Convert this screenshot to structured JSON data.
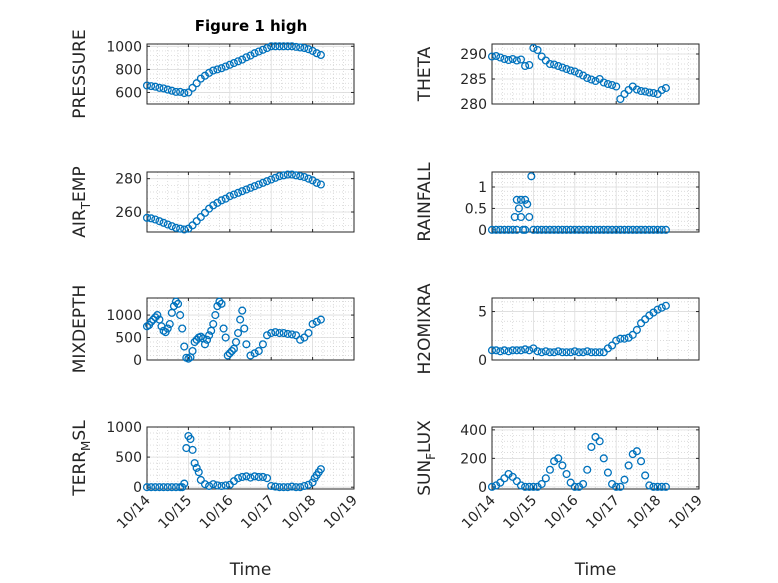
{
  "figure": {
    "title": "Figure 1 high",
    "marker_color": "#0072BD"
  },
  "chart_data": [
    {
      "type": "scatter",
      "title": "Figure 1 high",
      "ylabel": "PRESSURE",
      "ylim": [
        500,
        1020
      ],
      "yticks": [
        600,
        800,
        1000
      ],
      "xticks": [],
      "series": [
        {
          "x": [
            14.0,
            14.1,
            14.2,
            14.3,
            14.4,
            14.5,
            14.6,
            14.7,
            14.8,
            14.9,
            15.0,
            15.1,
            15.2,
            15.3,
            15.4,
            15.5,
            15.6,
            15.7,
            15.8,
            15.9,
            16.0,
            16.1,
            16.2,
            16.3,
            16.4,
            16.5,
            16.6,
            16.7,
            16.8,
            16.9,
            17.0,
            17.1,
            17.2,
            17.3,
            17.4,
            17.5,
            17.6,
            17.7,
            17.8,
            17.9,
            18.0,
            18.1,
            18.2
          ],
          "y": [
            660,
            655,
            650,
            640,
            635,
            625,
            615,
            605,
            605,
            595,
            600,
            640,
            680,
            720,
            745,
            770,
            790,
            800,
            810,
            825,
            840,
            855,
            870,
            885,
            905,
            920,
            940,
            955,
            970,
            985,
            1000,
            1000,
            1000,
            1000,
            1000,
            1000,
            995,
            990,
            985,
            975,
            960,
            940,
            925
          ]
        }
      ]
    },
    {
      "type": "scatter",
      "ylabel": "THETA",
      "ylim": [
        280,
        292
      ],
      "yticks": [
        280,
        285,
        290
      ],
      "xticks": [],
      "series": [
        {
          "x": [
            14.0,
            14.1,
            14.2,
            14.3,
            14.4,
            14.5,
            14.6,
            14.7,
            14.8,
            14.9,
            15.0,
            15.1,
            15.2,
            15.3,
            15.4,
            15.5,
            15.6,
            15.7,
            15.8,
            15.9,
            16.0,
            16.1,
            16.2,
            16.3,
            16.4,
            16.5,
            16.6,
            16.7,
            16.8,
            16.9,
            17.0,
            17.1,
            17.2,
            17.3,
            17.4,
            17.5,
            17.6,
            17.7,
            17.8,
            17.9,
            18.0,
            18.1,
            18.2
          ],
          "y": [
            289.5,
            289.6,
            289.3,
            289.0,
            288.8,
            289.0,
            288.7,
            288.9,
            287.6,
            287.8,
            291.2,
            290.8,
            289.5,
            288.7,
            288.0,
            287.9,
            287.6,
            287.3,
            287.0,
            286.7,
            286.5,
            286.1,
            285.7,
            285.2,
            284.9,
            284.6,
            285.0,
            284.3,
            284.0,
            283.8,
            283.5,
            281.0,
            282.0,
            282.8,
            283.5,
            282.9,
            282.6,
            282.5,
            282.3,
            282.2,
            282.0,
            282.8,
            283.2
          ]
        }
      ]
    },
    {
      "type": "scatter",
      "ylabel": "AIR_TEMP",
      "ylim": [
        248,
        284
      ],
      "yticks": [
        260,
        280
      ],
      "xticks": [],
      "series": [
        {
          "x": [
            14.0,
            14.1,
            14.2,
            14.3,
            14.4,
            14.5,
            14.6,
            14.7,
            14.8,
            14.9,
            15.0,
            15.1,
            15.2,
            15.3,
            15.4,
            15.5,
            15.6,
            15.7,
            15.8,
            15.9,
            16.0,
            16.1,
            16.2,
            16.3,
            16.4,
            16.5,
            16.6,
            16.7,
            16.8,
            16.9,
            17.0,
            17.1,
            17.2,
            17.3,
            17.4,
            17.5,
            17.6,
            17.7,
            17.8,
            17.9,
            18.0,
            18.1,
            18.2
          ],
          "y": [
            256.5,
            256.2,
            255.5,
            254.5,
            253.5,
            252.5,
            251.5,
            250.5,
            250.0,
            249.5,
            250.0,
            252.0,
            254.5,
            257.0,
            259.5,
            262.0,
            264.0,
            265.5,
            267.0,
            268.0,
            269.5,
            270.5,
            271.5,
            272.5,
            273.5,
            274.5,
            275.5,
            276.5,
            277.5,
            278.5,
            279.5,
            280.5,
            281.5,
            282.0,
            282.5,
            282.5,
            282.0,
            281.5,
            281.0,
            280.0,
            279.0,
            277.5,
            276.5
          ]
        }
      ]
    },
    {
      "type": "scatter",
      "ylabel": "RAINFALL",
      "ylim": [
        -0.05,
        1.35
      ],
      "yticks": [
        0,
        0.5,
        1
      ],
      "xticks": [],
      "series": [
        {
          "x": [
            14.0,
            14.1,
            14.2,
            14.3,
            14.4,
            14.5,
            14.55,
            14.6,
            14.6,
            14.65,
            14.7,
            14.7,
            14.75,
            14.8,
            14.8,
            14.85,
            14.9,
            14.95,
            15.0,
            15.1,
            15.2,
            15.3,
            15.4,
            15.5,
            15.6,
            15.7,
            15.8,
            15.9,
            16.0,
            16.1,
            16.2,
            16.3,
            16.4,
            16.5,
            16.6,
            16.7,
            16.8,
            16.9,
            17.0,
            17.1,
            17.2,
            17.3,
            17.4,
            17.5,
            17.6,
            17.7,
            17.8,
            17.9,
            18.0,
            18.1,
            18.2
          ],
          "y": [
            0,
            0,
            0,
            0,
            0,
            0,
            0.3,
            0,
            0.7,
            0.5,
            0.7,
            0.3,
            0,
            0.7,
            0,
            0.6,
            0.3,
            1.25,
            0,
            0,
            0,
            0,
            0,
            0,
            0,
            0,
            0,
            0,
            0,
            0,
            0,
            0,
            0,
            0,
            0,
            0,
            0,
            0,
            0,
            0,
            0,
            0,
            0,
            0,
            0,
            0,
            0,
            0,
            0,
            0,
            0
          ]
        }
      ]
    },
    {
      "type": "scatter",
      "ylabel": "MIXDEPTH",
      "ylim": [
        0,
        1380
      ],
      "yticks": [
        0,
        500,
        1000
      ],
      "xticks": [],
      "series": [
        {
          "x": [
            14.0,
            14.05,
            14.1,
            14.15,
            14.2,
            14.25,
            14.3,
            14.35,
            14.4,
            14.45,
            14.5,
            14.55,
            14.6,
            14.65,
            14.7,
            14.75,
            14.8,
            14.85,
            14.9,
            14.95,
            15.0,
            15.05,
            15.1,
            15.15,
            15.2,
            15.25,
            15.3,
            15.35,
            15.4,
            15.45,
            15.5,
            15.55,
            15.6,
            15.65,
            15.7,
            15.75,
            15.8,
            15.85,
            15.9,
            15.95,
            16.0,
            16.05,
            16.1,
            16.15,
            16.2,
            16.25,
            16.3,
            16.35,
            16.4,
            16.5,
            16.6,
            16.7,
            16.8,
            16.9,
            17.0,
            17.1,
            17.2,
            17.3,
            17.4,
            17.5,
            17.6,
            17.7,
            17.8,
            17.9,
            18.0,
            18.1,
            18.2
          ],
          "y": [
            750,
            780,
            850,
            900,
            950,
            1000,
            900,
            750,
            650,
            620,
            700,
            800,
            1050,
            1200,
            1300,
            1250,
            1000,
            700,
            300,
            50,
            30,
            60,
            200,
            400,
            450,
            500,
            520,
            480,
            350,
            450,
            550,
            650,
            800,
            1000,
            1200,
            1300,
            1250,
            700,
            500,
            100,
            150,
            200,
            250,
            400,
            600,
            900,
            1100,
            700,
            350,
            100,
            150,
            200,
            350,
            550,
            600,
            620,
            600,
            600,
            580,
            570,
            550,
            450,
            500,
            600,
            800,
            850,
            900
          ]
        }
      ]
    },
    {
      "type": "scatter",
      "ylabel": "H2OMIXRA",
      "ylim": [
        0,
        6.4
      ],
      "yticks": [
        0,
        5
      ],
      "xticks": [],
      "series": [
        {
          "x": [
            14.0,
            14.1,
            14.2,
            14.3,
            14.4,
            14.5,
            14.6,
            14.7,
            14.8,
            14.9,
            15.0,
            15.1,
            15.2,
            15.3,
            15.4,
            15.5,
            15.6,
            15.7,
            15.8,
            15.9,
            16.0,
            16.1,
            16.2,
            16.3,
            16.4,
            16.5,
            16.6,
            16.7,
            16.8,
            16.9,
            17.0,
            17.1,
            17.2,
            17.3,
            17.4,
            17.5,
            17.6,
            17.7,
            17.8,
            17.9,
            18.0,
            18.1,
            18.2
          ],
          "y": [
            1.0,
            1.0,
            0.9,
            1.0,
            0.9,
            1.0,
            1.0,
            1.0,
            1.1,
            1.0,
            1.2,
            0.9,
            0.8,
            0.9,
            0.8,
            0.8,
            0.9,
            0.8,
            0.8,
            0.8,
            0.9,
            0.8,
            0.8,
            0.9,
            0.8,
            0.8,
            0.8,
            0.8,
            1.2,
            1.5,
            2.0,
            2.2,
            2.2,
            2.3,
            2.6,
            3.1,
            3.8,
            4.2,
            4.6,
            4.9,
            5.2,
            5.4,
            5.6
          ]
        }
      ]
    },
    {
      "type": "scatter",
      "ylabel": "TERR_MSL",
      "ylim": [
        -30,
        1000
      ],
      "yticks": [
        0,
        500,
        1000
      ],
      "xticks": [
        "10/14",
        "10/15",
        "10/16",
        "10/17",
        "10/18",
        "10/19"
      ],
      "xlabel": "Time",
      "series": [
        {
          "x": [
            14.0,
            14.1,
            14.2,
            14.3,
            14.4,
            14.5,
            14.6,
            14.7,
            14.8,
            14.85,
            14.9,
            14.95,
            15.0,
            15.05,
            15.1,
            15.15,
            15.2,
            15.25,
            15.3,
            15.4,
            15.5,
            15.6,
            15.7,
            15.8,
            15.9,
            16.0,
            16.1,
            16.2,
            16.3,
            16.4,
            16.5,
            16.6,
            16.7,
            16.8,
            16.9,
            17.0,
            17.1,
            17.2,
            17.3,
            17.4,
            17.5,
            17.6,
            17.7,
            17.8,
            17.9,
            18.0,
            18.05,
            18.1,
            18.15,
            18.2
          ],
          "y": [
            0,
            0,
            0,
            0,
            0,
            0,
            0,
            0,
            0,
            0,
            60,
            650,
            850,
            800,
            620,
            400,
            320,
            250,
            120,
            50,
            20,
            50,
            30,
            20,
            30,
            40,
            100,
            150,
            170,
            180,
            160,
            180,
            170,
            170,
            150,
            20,
            10,
            0,
            0,
            0,
            10,
            0,
            0,
            20,
            40,
            80,
            150,
            200,
            250,
            300
          ]
        }
      ]
    },
    {
      "type": "scatter",
      "ylabel": "SUN_FLUX",
      "ylim": [
        -15,
        420
      ],
      "yticks": [
        0,
        200,
        400
      ],
      "xticks": [
        "10/14",
        "10/15",
        "10/16",
        "10/17",
        "10/18",
        "10/19"
      ],
      "xlabel": "Time",
      "series": [
        {
          "x": [
            14.0,
            14.1,
            14.2,
            14.3,
            14.4,
            14.5,
            14.6,
            14.7,
            14.8,
            14.9,
            15.0,
            15.1,
            15.2,
            15.3,
            15.4,
            15.5,
            15.6,
            15.7,
            15.8,
            15.9,
            16.0,
            16.1,
            16.2,
            16.3,
            16.4,
            16.5,
            16.6,
            16.7,
            16.8,
            16.9,
            17.0,
            17.1,
            17.2,
            17.3,
            17.4,
            17.5,
            17.6,
            17.7,
            17.8,
            17.9,
            18.0,
            18.1,
            18.2
          ],
          "y": [
            0,
            10,
            30,
            60,
            90,
            70,
            40,
            10,
            0,
            0,
            0,
            0,
            20,
            60,
            120,
            180,
            200,
            150,
            90,
            30,
            0,
            0,
            20,
            120,
            280,
            350,
            320,
            200,
            100,
            20,
            0,
            0,
            50,
            150,
            230,
            250,
            180,
            80,
            10,
            0,
            0,
            0,
            0
          ]
        }
      ]
    }
  ]
}
